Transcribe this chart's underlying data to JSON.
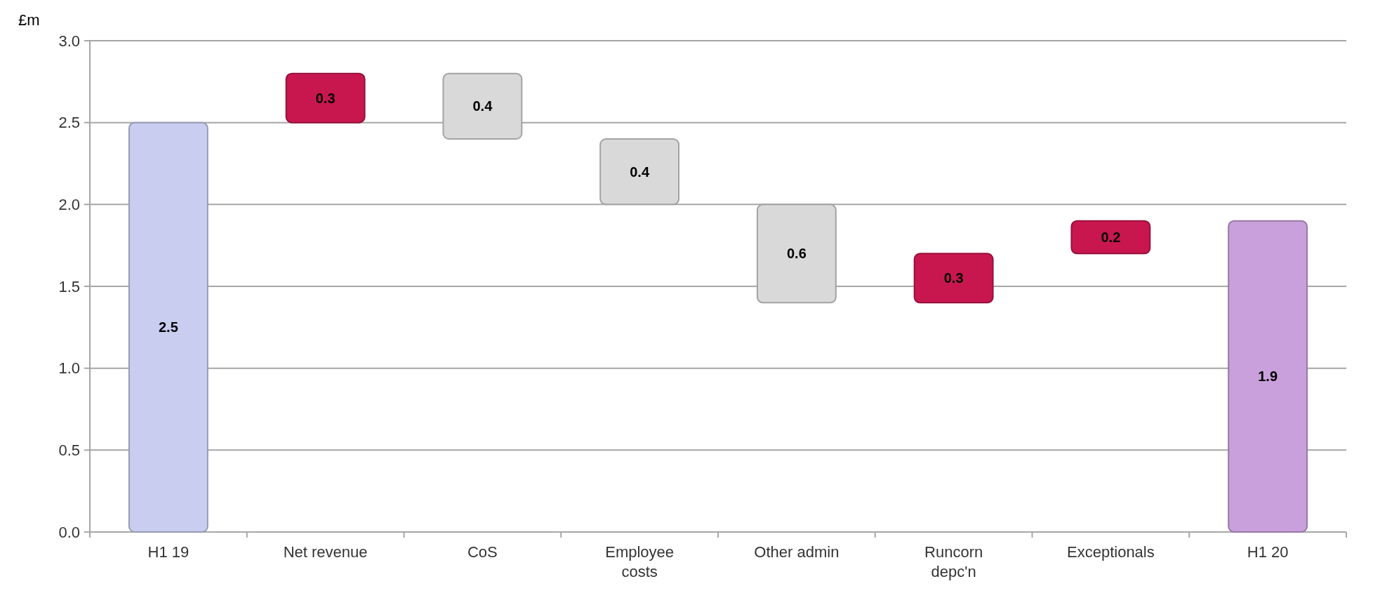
{
  "chart_data": {
    "type": "bar",
    "ylabel": "£m",
    "categories": [
      "H1 19",
      "Net revenue",
      "CoS",
      "Employee costs",
      "Other admin",
      "Runcorn depc'n",
      "Exceptionals",
      "H1 20"
    ],
    "values": [
      2.5,
      0.3,
      0.4,
      0.4,
      0.6,
      0.3,
      0.2,
      1.9
    ],
    "base": [
      0,
      2.5,
      2.4,
      2.0,
      1.4,
      1.4,
      1.7,
      0
    ],
    "colors": [
      "#c9cdf0",
      "#c8174f",
      "#d9d9d9",
      "#d9d9d9",
      "#d9d9d9",
      "#c8174f",
      "#c8174f",
      "#c9a0dc"
    ],
    "data_labels": true,
    "ylim": [
      0,
      3
    ],
    "yticks": [
      {
        "value": 0,
        "label": "0.0"
      },
      {
        "value": 0.5,
        "label": "0.5"
      },
      {
        "value": 1,
        "label": "1.0"
      },
      {
        "value": 1.5,
        "label": "1.5"
      },
      {
        "value": 2,
        "label": "2.0"
      },
      {
        "value": 2.5,
        "label": "2.5"
      },
      {
        "value": 3,
        "label": "3.0"
      }
    ],
    "grid": "y"
  }
}
